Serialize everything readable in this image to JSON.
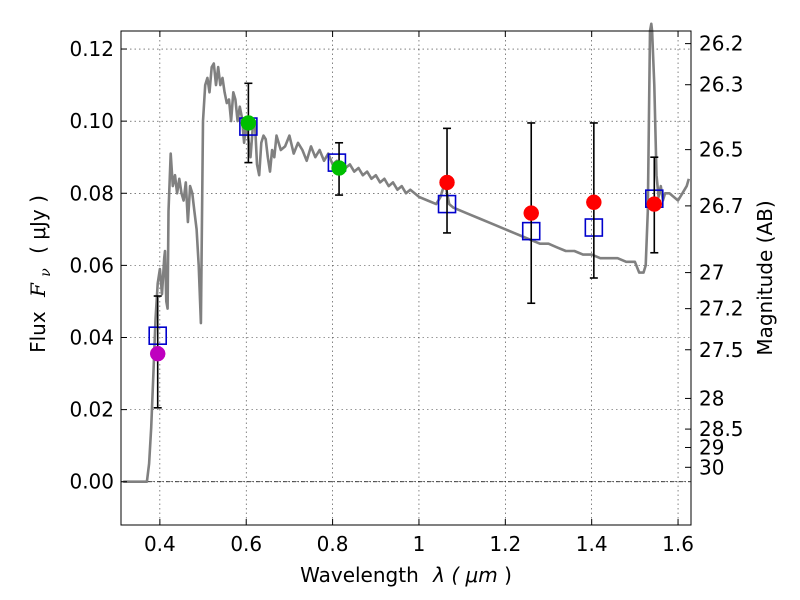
{
  "chart_data": {
    "type": "scatter",
    "xlabel_main": "Wavelength",
    "xlabel_sym": "λ (",
    "xlabel_unit": "μm",
    "xlabel_close": ")",
    "ylabel_main": "Flux",
    "ylabel_sym": "F",
    "ylabel_sub": "ν",
    "ylabel_unit": "( μJy )",
    "y2label": "Magnitude (AB)",
    "xlim": [
      0.31,
      1.63
    ],
    "ylim": [
      -0.012,
      0.125
    ],
    "x_ticks": [
      {
        "value": 0.4,
        "label": "0.4"
      },
      {
        "value": 0.6,
        "label": "0.6"
      },
      {
        "value": 0.8,
        "label": "0.8"
      },
      {
        "value": 1.0,
        "label": "1"
      },
      {
        "value": 1.2,
        "label": "1.2"
      },
      {
        "value": 1.4,
        "label": "1.4"
      },
      {
        "value": 1.6,
        "label": "1.6"
      }
    ],
    "y_ticks": [
      {
        "value": 0.0,
        "label": "0.00"
      },
      {
        "value": 0.02,
        "label": "0.02"
      },
      {
        "value": 0.04,
        "label": "0.04"
      },
      {
        "value": 0.06,
        "label": "0.06"
      },
      {
        "value": 0.08,
        "label": "0.08"
      },
      {
        "value": 0.1,
        "label": "0.10"
      },
      {
        "value": 0.12,
        "label": "0.12"
      }
    ],
    "mag_ticks": [
      {
        "flux": 0.1215,
        "label": "26.2"
      },
      {
        "flux": 0.1101,
        "label": "26.3"
      },
      {
        "flux": 0.0921,
        "label": "26.5"
      },
      {
        "flux": 0.0765,
        "label": "26.7"
      },
      {
        "flux": 0.058,
        "label": "27"
      },
      {
        "flux": 0.048,
        "label": "27.2"
      },
      {
        "flux": 0.0366,
        "label": "27.5"
      },
      {
        "flux": 0.0231,
        "label": "28"
      },
      {
        "flux": 0.0146,
        "label": "28.5"
      },
      {
        "flux": 0.0095,
        "label": "29"
      },
      {
        "flux": 0.004,
        "label": "30"
      }
    ],
    "colors": {
      "sed": "#808080",
      "model": "#0000cc",
      "error": "#000000",
      "violet": "#bf00bf",
      "green": "#00bf00",
      "red": "#ff0000"
    },
    "sed": {
      "x": [
        0.315,
        0.37,
        0.375,
        0.38,
        0.385,
        0.39,
        0.395,
        0.4,
        0.405,
        0.41,
        0.412,
        0.415,
        0.418,
        0.42,
        0.425,
        0.43,
        0.435,
        0.44,
        0.445,
        0.45,
        0.455,
        0.46,
        0.465,
        0.47,
        0.475,
        0.48,
        0.485,
        0.49,
        0.495,
        0.5,
        0.505,
        0.51,
        0.515,
        0.52,
        0.525,
        0.53,
        0.535,
        0.54,
        0.545,
        0.55,
        0.555,
        0.56,
        0.565,
        0.57,
        0.575,
        0.58,
        0.585,
        0.59,
        0.595,
        0.6,
        0.605,
        0.61,
        0.615,
        0.62,
        0.625,
        0.63,
        0.635,
        0.64,
        0.645,
        0.65,
        0.655,
        0.66,
        0.665,
        0.67,
        0.675,
        0.68,
        0.69,
        0.7,
        0.71,
        0.72,
        0.73,
        0.74,
        0.75,
        0.76,
        0.77,
        0.78,
        0.79,
        0.8,
        0.81,
        0.82,
        0.83,
        0.84,
        0.85,
        0.86,
        0.87,
        0.88,
        0.89,
        0.9,
        0.91,
        0.92,
        0.93,
        0.94,
        0.95,
        0.96,
        0.97,
        0.98,
        0.99,
        1.0,
        1.02,
        1.04,
        1.05,
        1.06,
        1.07,
        1.08,
        1.1,
        1.12,
        1.14,
        1.16,
        1.18,
        1.2,
        1.22,
        1.24,
        1.26,
        1.28,
        1.3,
        1.32,
        1.34,
        1.36,
        1.38,
        1.4,
        1.42,
        1.44,
        1.46,
        1.48,
        1.5,
        1.51,
        1.52,
        1.525,
        1.53,
        1.535,
        1.538,
        1.54,
        1.545,
        1.55,
        1.555,
        1.56,
        1.565,
        1.57,
        1.58,
        1.59,
        1.6,
        1.61,
        1.62,
        1.625
      ],
      "y": [
        0.0,
        0.0,
        0.005,
        0.015,
        0.03,
        0.045,
        0.055,
        0.059,
        0.052,
        0.062,
        0.064,
        0.05,
        0.048,
        0.075,
        0.091,
        0.082,
        0.085,
        0.08,
        0.084,
        0.08,
        0.078,
        0.083,
        0.072,
        0.082,
        0.08,
        0.075,
        0.07,
        0.06,
        0.044,
        0.1,
        0.11,
        0.112,
        0.108,
        0.115,
        0.116,
        0.11,
        0.115,
        0.11,
        0.112,
        0.108,
        0.105,
        0.106,
        0.1,
        0.108,
        0.106,
        0.1,
        0.104,
        0.101,
        0.094,
        0.1,
        0.095,
        0.09,
        0.098,
        0.1,
        0.088,
        0.085,
        0.094,
        0.096,
        0.095,
        0.09,
        0.086,
        0.092,
        0.09,
        0.096,
        0.094,
        0.092,
        0.093,
        0.096,
        0.091,
        0.094,
        0.092,
        0.089,
        0.093,
        0.09,
        0.092,
        0.089,
        0.091,
        0.088,
        0.089,
        0.088,
        0.087,
        0.088,
        0.086,
        0.087,
        0.085,
        0.086,
        0.084,
        0.085,
        0.083,
        0.084,
        0.082,
        0.083,
        0.081,
        0.082,
        0.08,
        0.081,
        0.08,
        0.079,
        0.078,
        0.077,
        0.079,
        0.083,
        0.077,
        0.076,
        0.075,
        0.074,
        0.073,
        0.072,
        0.071,
        0.07,
        0.069,
        0.068,
        0.067,
        0.066,
        0.066,
        0.065,
        0.064,
        0.064,
        0.063,
        0.063,
        0.062,
        0.062,
        0.062,
        0.061,
        0.061,
        0.058,
        0.058,
        0.06,
        0.075,
        0.125,
        0.127,
        0.125,
        0.11,
        0.085,
        0.079,
        0.082,
        0.078,
        0.08,
        0.08,
        0.079,
        0.078,
        0.08,
        0.082,
        0.084
      ]
    },
    "model_points": [
      {
        "x": 0.395,
        "y": 0.0405
      },
      {
        "x": 0.605,
        "y": 0.0985
      },
      {
        "x": 0.81,
        "y": 0.0885
      },
      {
        "x": 1.065,
        "y": 0.077
      },
      {
        "x": 1.26,
        "y": 0.0695
      },
      {
        "x": 1.405,
        "y": 0.0705
      },
      {
        "x": 1.545,
        "y": 0.0785
      }
    ],
    "observed_points": [
      {
        "x": 0.395,
        "y": 0.0355,
        "ylow": 0.0205,
        "yhigh": 0.0515,
        "color": "violet"
      },
      {
        "x": 0.605,
        "y": 0.0995,
        "ylow": 0.0885,
        "yhigh": 0.1105,
        "color": "green"
      },
      {
        "x": 0.815,
        "y": 0.087,
        "ylow": 0.0795,
        "yhigh": 0.094,
        "color": "green"
      },
      {
        "x": 1.065,
        "y": 0.083,
        "ylow": 0.069,
        "yhigh": 0.098,
        "color": "red"
      },
      {
        "x": 1.26,
        "y": 0.0745,
        "ylow": 0.0495,
        "yhigh": 0.0995,
        "color": "red"
      },
      {
        "x": 1.405,
        "y": 0.0775,
        "ylow": 0.0565,
        "yhigh": 0.0995,
        "color": "red"
      },
      {
        "x": 1.545,
        "y": 0.077,
        "ylow": 0.0635,
        "yhigh": 0.09,
        "color": "red"
      }
    ]
  }
}
